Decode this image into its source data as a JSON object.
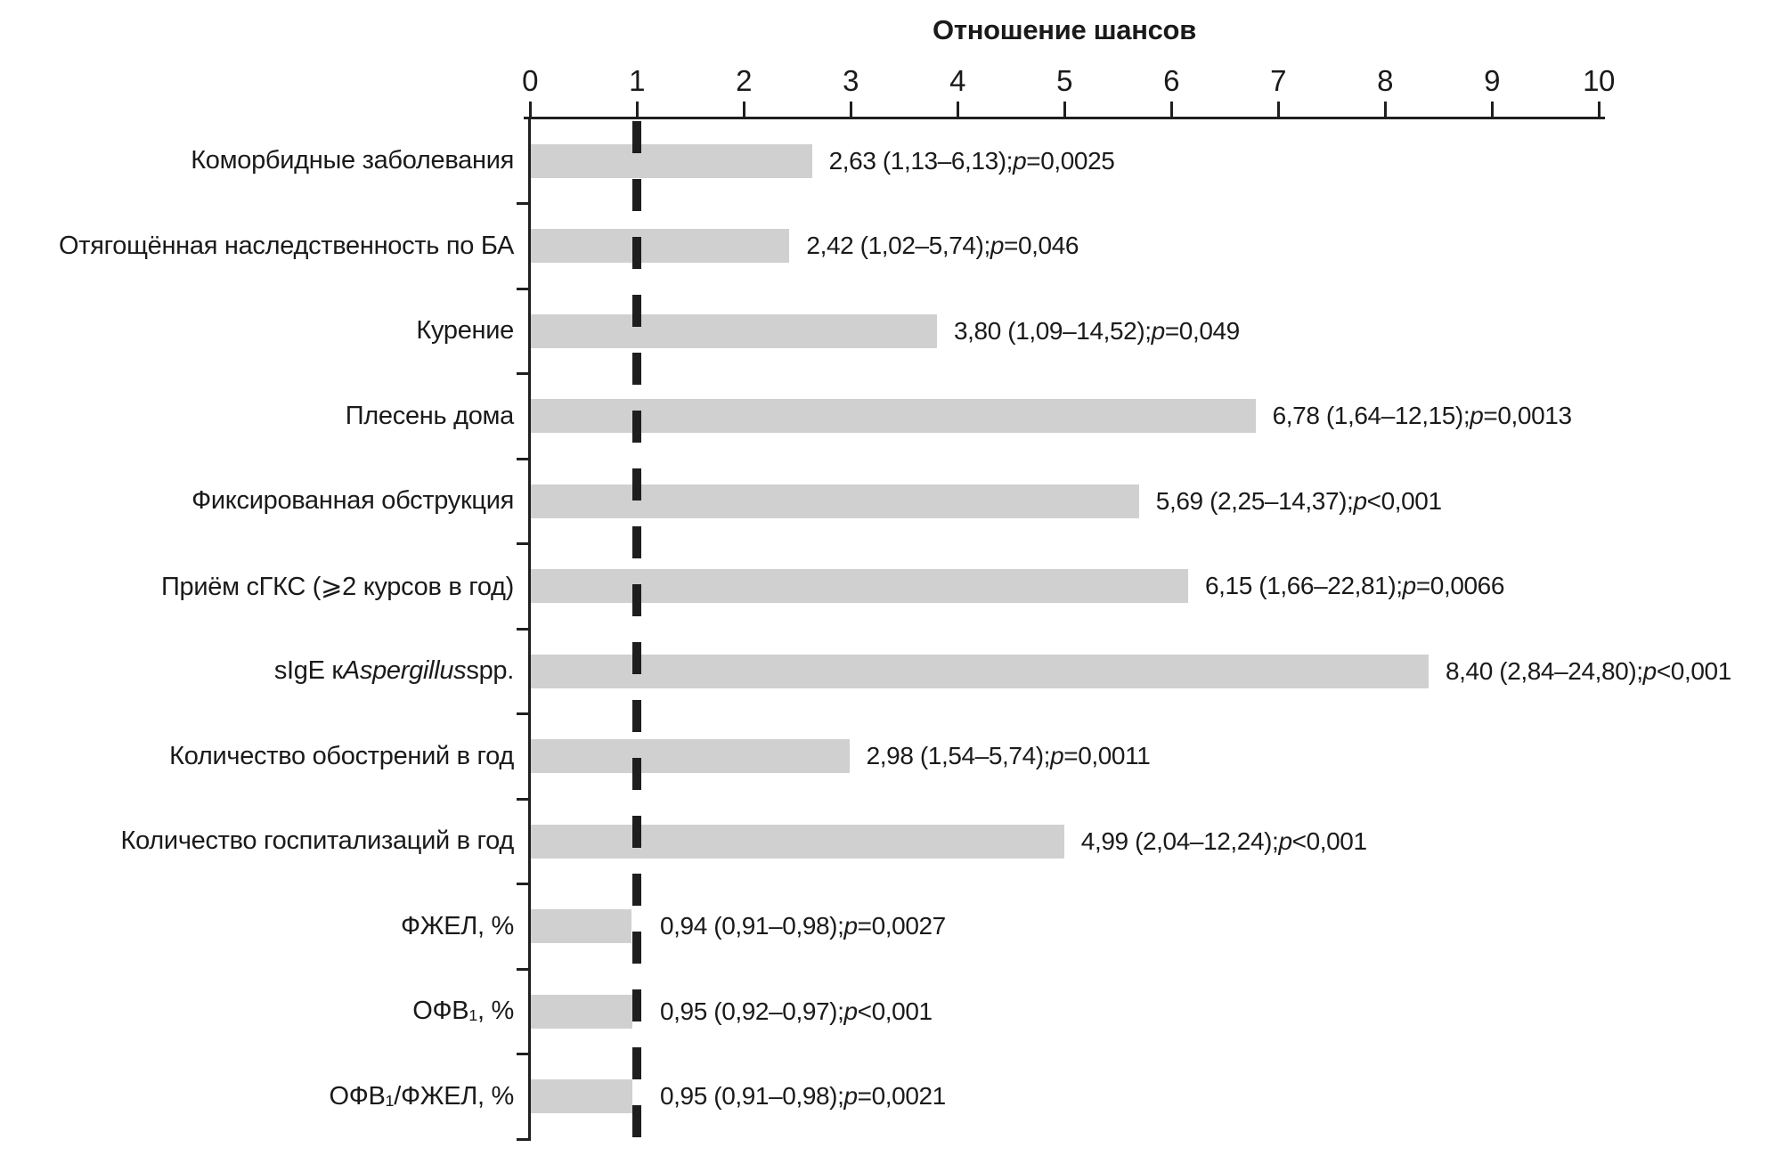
{
  "title": "Отношение шансов",
  "axis": {
    "ticks": [
      "0",
      "1",
      "2",
      "3",
      "4",
      "5",
      "6",
      "7",
      "8",
      "9",
      "10"
    ],
    "min": 0,
    "max": 10
  },
  "colors": {
    "bar": "#d0d0d0",
    "axis": "#1f1f1f",
    "text": "#1a1a1a",
    "background": "#ffffff"
  },
  "chart_data": {
    "type": "bar",
    "orientation": "horizontal",
    "title": "Отношение шансов",
    "xlabel": "Отношение шансов",
    "xlim": [
      0,
      10
    ],
    "grid": false,
    "reference_line_x": 1,
    "categories": [
      "Коморбидные заболевания",
      "Отягощённая наследственность по БА",
      "Курение",
      "Плесень дома",
      "Фиксированная обструкция",
      "Приём сГКС (⩾2 курсов в год)",
      "sIgE к Aspergillus spp.",
      "Количество обострений в год",
      "Количество госпитализаций в год",
      "ФЖЕЛ, %",
      "ОФВ1, %",
      "ОФВ1/ФЖЕЛ, %"
    ],
    "values": [
      2.63,
      2.42,
      3.8,
      6.78,
      5.69,
      6.15,
      8.4,
      2.98,
      4.99,
      0.94,
      0.95,
      0.95
    ],
    "ci_low": [
      1.13,
      1.02,
      1.09,
      1.64,
      2.25,
      1.66,
      2.84,
      1.54,
      2.04,
      0.91,
      0.92,
      0.91
    ],
    "ci_high": [
      6.13,
      5.74,
      14.52,
      12.15,
      14.37,
      22.81,
      24.8,
      5.74,
      12.24,
      0.98,
      0.97,
      0.98
    ],
    "p_values": [
      "p=0,0025",
      "p=0,046",
      "p=0,049",
      "p=0,0013",
      "p <0,001",
      "p=0,0066",
      "p <0,001",
      "p=0,0011",
      "p <0,001",
      "p=0,0027",
      "p <0,001",
      "p=0,0021"
    ]
  },
  "rows": [
    {
      "label_parts": [
        {
          "t": "Коморбидные заболевания"
        }
      ],
      "value": 2.63,
      "or_ci": "2,63 (1,13–6,13); ",
      "p_label": "p",
      "p_rest": "=0,0025"
    },
    {
      "label_parts": [
        {
          "t": "Отягощённая наследственность по БА"
        }
      ],
      "value": 2.42,
      "or_ci": "2,42 (1,02–5,74); ",
      "p_label": "p",
      "p_rest": "=0,046"
    },
    {
      "label_parts": [
        {
          "t": "Курение"
        }
      ],
      "value": 3.8,
      "or_ci": "3,80 (1,09–14,52); ",
      "p_label": "p",
      "p_rest": "=0,049"
    },
    {
      "label_parts": [
        {
          "t": "Плесень дома"
        }
      ],
      "value": 6.78,
      "or_ci": "6,78 (1,64–12,15); ",
      "p_label": "p",
      "p_rest": "=0,0013"
    },
    {
      "label_parts": [
        {
          "t": "Фиксированная обструкция"
        }
      ],
      "value": 5.69,
      "or_ci": "5,69 (2,25–14,37); ",
      "p_label": "p",
      "p_rest": " <0,001"
    },
    {
      "label_parts": [
        {
          "t": "Приём сГКС (⩾2 курсов в год)"
        }
      ],
      "value": 6.15,
      "or_ci": "6,15 (1,66–22,81); ",
      "p_label": "p",
      "p_rest": "=0,0066"
    },
    {
      "label_parts": [
        {
          "t": "sIgE к "
        },
        {
          "t": "Aspergillus",
          "s": "i"
        },
        {
          "t": " spp."
        }
      ],
      "value": 8.4,
      "or_ci": "8,40 (2,84–24,80); ",
      "p_label": "p",
      "p_rest": " <0,001"
    },
    {
      "label_parts": [
        {
          "t": "Количество обострений в год"
        }
      ],
      "value": 2.98,
      "or_ci": "2,98 (1,54–5,74); ",
      "p_label": "p",
      "p_rest": "=0,0011"
    },
    {
      "label_parts": [
        {
          "t": "Количество госпитализаций в год"
        }
      ],
      "value": 4.99,
      "or_ci": "4,99 (2,04–12,24); ",
      "p_label": "p",
      "p_rest": " <0,001"
    },
    {
      "label_parts": [
        {
          "t": "ФЖЕЛ, %"
        }
      ],
      "value": 0.94,
      "or_ci": "0,94 (0,91–0,98); ",
      "p_label": "p",
      "p_rest": "=0,0027"
    },
    {
      "label_parts": [
        {
          "t": "ОФВ"
        },
        {
          "t": "1",
          "s": "sub"
        },
        {
          "t": ", %"
        }
      ],
      "value": 0.95,
      "or_ci": "0,95 (0,92–0,97); ",
      "p_label": "p",
      "p_rest": " <0,001"
    },
    {
      "label_parts": [
        {
          "t": "ОФВ"
        },
        {
          "t": "1",
          "s": "sub"
        },
        {
          "t": "/ФЖЕЛ, %"
        }
      ],
      "value": 0.95,
      "or_ci": "0,95 (0,91–0,98); ",
      "p_label": "p",
      "p_rest": "=0,0021"
    }
  ]
}
